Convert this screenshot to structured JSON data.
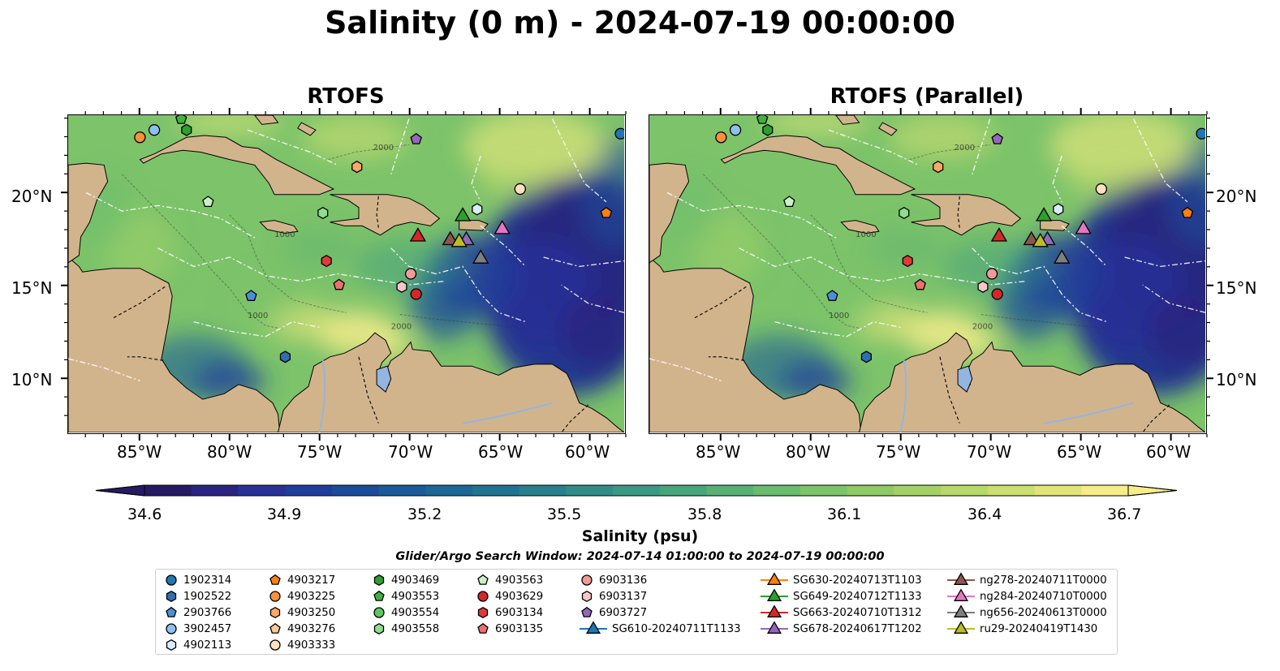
{
  "title": "Salinity (0 m) - 2024-07-19 00:00:00",
  "panels": [
    {
      "title": "RTOFS"
    },
    {
      "title": "RTOFS (Parallel)"
    }
  ],
  "axes": {
    "lon_labels": [
      "85°W",
      "80°W",
      "75°W",
      "70°W",
      "65°W",
      "60°W"
    ],
    "lat_labels": [
      "20°N",
      "15°N",
      "10°N"
    ],
    "lon_range": [
      -89,
      -58
    ],
    "lat_range": [
      7,
      24.2
    ]
  },
  "map_labels": [
    "1000",
    "2000"
  ],
  "colorbar": {
    "label": "Salinity (psu)",
    "ticks": [
      "34.6",
      "34.9",
      "35.2",
      "35.5",
      "35.8",
      "36.1",
      "36.4",
      "36.7"
    ],
    "colors": [
      "#261a63",
      "#2a2380",
      "#293196",
      "#203d9a",
      "#1b4c99",
      "#1a5a98",
      "#1c6796",
      "#207391",
      "#27808c",
      "#318c87",
      "#3b9882",
      "#48a47c",
      "#58b075",
      "#6abb6f",
      "#7cc36a",
      "#8fca66",
      "#a3d167",
      "#b7d86b",
      "#cbde72",
      "#e0e47b",
      "#f5ec8a"
    ]
  },
  "search_window": "Glider/Argo Search Window: 2024-07-14 01:00:00 to 2024-07-19 00:00:00",
  "legend": [
    {
      "label": "1902314",
      "marker": "circle",
      "color": "#1f77b4"
    },
    {
      "label": "1902522",
      "marker": "hexagon",
      "color": "#2f6fb0"
    },
    {
      "label": "2903766",
      "marker": "pentagon",
      "color": "#4a90d9"
    },
    {
      "label": "3902457",
      "marker": "circle",
      "color": "#8dc0ee"
    },
    {
      "label": "4902113",
      "marker": "hexagon",
      "color": "#d9ecfb"
    },
    {
      "label": "4903217",
      "marker": "pentagon",
      "color": "#ff7f0e"
    },
    {
      "label": "4903225",
      "marker": "circle",
      "color": "#ff8f3a"
    },
    {
      "label": "4903250",
      "marker": "hexagon",
      "color": "#ffa863"
    },
    {
      "label": "4903276",
      "marker": "pentagon",
      "color": "#ffc896"
    },
    {
      "label": "4903333",
      "marker": "circle",
      "color": "#ffe0c0"
    },
    {
      "label": "4903469",
      "marker": "hexagon",
      "color": "#2ca02c"
    },
    {
      "label": "4903553",
      "marker": "pentagon",
      "color": "#3cb43c"
    },
    {
      "label": "4903554",
      "marker": "circle",
      "color": "#5dc85d"
    },
    {
      "label": "4903558",
      "marker": "hexagon",
      "color": "#90dd90"
    },
    {
      "label": "4903563",
      "marker": "pentagon",
      "color": "#c8f2c4"
    },
    {
      "label": "4903629",
      "marker": "circle",
      "color": "#d62728"
    },
    {
      "label": "6903134",
      "marker": "hexagon",
      "color": "#e0393a"
    },
    {
      "label": "6903135",
      "marker": "pentagon",
      "color": "#ec7070"
    },
    {
      "label": "6903136",
      "marker": "circle",
      "color": "#f29a9a"
    },
    {
      "label": "6903137",
      "marker": "hexagon",
      "color": "#f8c6c6"
    },
    {
      "label": "6903727",
      "marker": "pentagon",
      "color": "#9467bd"
    },
    {
      "label": "SG610-20240711T1133",
      "marker": "triangle-line",
      "color": "#1f77b4"
    },
    {
      "label": "SG630-20240713T1103",
      "marker": "triangle-line",
      "color": "#ff7f0e"
    },
    {
      "label": "SG649-20240712T1133",
      "marker": "triangle-line",
      "color": "#2ca02c"
    },
    {
      "label": "SG663-20240710T1312",
      "marker": "triangle-line",
      "color": "#d62728"
    },
    {
      "label": "SG678-20240617T1202",
      "marker": "triangle-line",
      "color": "#9467bd"
    },
    {
      "label": "ng278-20240711T0000",
      "marker": "triangle-line",
      "color": "#8c564b"
    },
    {
      "label": "ng284-20240710T0000",
      "marker": "triangle-line",
      "color": "#e377c2"
    },
    {
      "label": "ng656-20240613T0000",
      "marker": "triangle-line",
      "color": "#7f7f7f"
    },
    {
      "label": "ru29-20240419T1430",
      "marker": "triangle-line",
      "color": "#bcbd22"
    }
  ],
  "observations": [
    {
      "id": "1902314",
      "lon": -58.2,
      "lat": 23.2
    },
    {
      "id": "4903225",
      "lon": -85.0,
      "lat": 23.0
    },
    {
      "id": "3902457",
      "lon": -84.2,
      "lat": 23.4
    },
    {
      "id": "4903553",
      "lon": -82.7,
      "lat": 24.0
    },
    {
      "id": "4903469",
      "lon": -82.4,
      "lat": 23.4
    },
    {
      "id": "6903727",
      "lon": -69.6,
      "lat": 22.9
    },
    {
      "id": "4903250",
      "lon": -72.9,
      "lat": 21.4
    },
    {
      "id": "4903563",
      "lon": -81.2,
      "lat": 19.5
    },
    {
      "id": "4903333",
      "lon": -63.8,
      "lat": 20.2
    },
    {
      "id": "4903558",
      "lon": -74.8,
      "lat": 18.9
    },
    {
      "id": "4902113",
      "lon": -66.2,
      "lat": 19.1
    },
    {
      "id": "4903217",
      "lon": -59.0,
      "lat": 18.9
    },
    {
      "id": "SG649-20240712T1133",
      "lon": -67.0,
      "lat": 18.8
    },
    {
      "id": "ng284-20240710T0000",
      "lon": -64.8,
      "lat": 18.1
    },
    {
      "id": "SG663-20240710T1312",
      "lon": -69.5,
      "lat": 17.7
    },
    {
      "id": "ng278-20240711T0000",
      "lon": -67.7,
      "lat": 17.5
    },
    {
      "id": "SG678-20240617T1202",
      "lon": -66.8,
      "lat": 17.5
    },
    {
      "id": "ru29-20240419T1430",
      "lon": -67.2,
      "lat": 17.4
    },
    {
      "id": "ng656-20240613T0000",
      "lon": -66.0,
      "lat": 16.5
    },
    {
      "id": "6903134",
      "lon": -74.6,
      "lat": 16.3
    },
    {
      "id": "6903136",
      "lon": -69.9,
      "lat": 15.6
    },
    {
      "id": "6903135",
      "lon": -73.9,
      "lat": 15.0
    },
    {
      "id": "6903137",
      "lon": -70.4,
      "lat": 14.9
    },
    {
      "id": "4903629",
      "lon": -69.6,
      "lat": 14.5
    },
    {
      "id": "2903766",
      "lon": -78.8,
      "lat": 14.4
    },
    {
      "id": "1902522",
      "lon": -76.9,
      "lat": 11.1
    }
  ]
}
